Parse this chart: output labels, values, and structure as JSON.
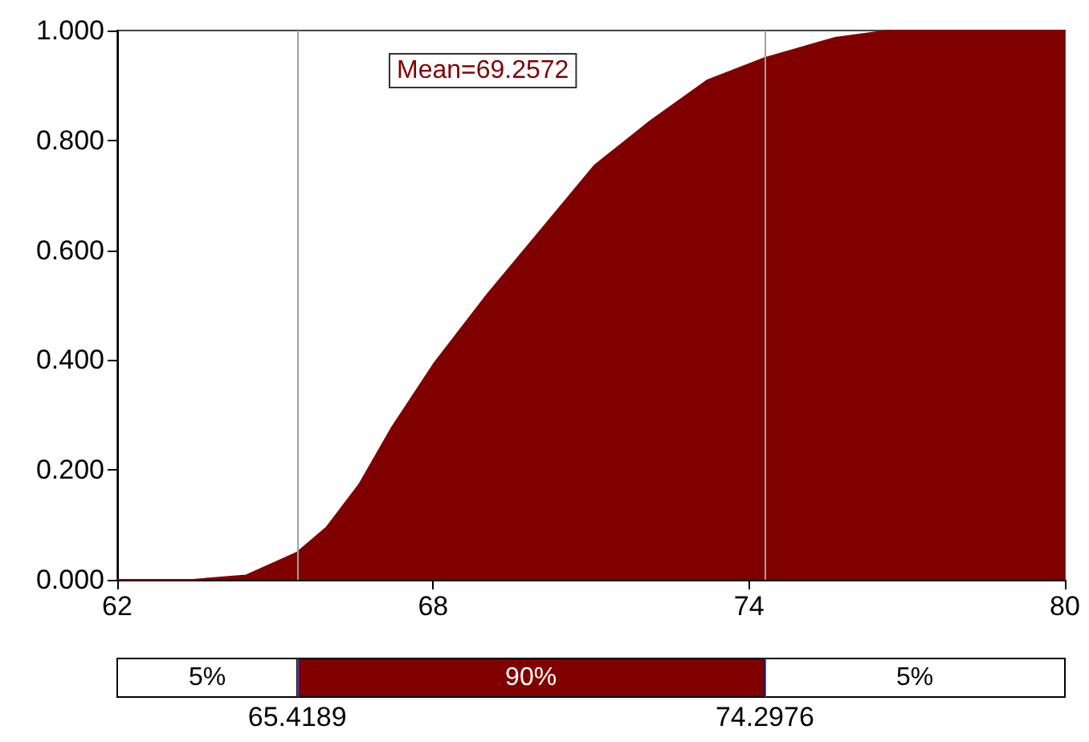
{
  "chart_data": {
    "type": "area",
    "x": [
      62,
      63.43,
      64.45,
      65.4189,
      65.97,
      66.59,
      67.2,
      68.01,
      69.03,
      70.04,
      71.06,
      72.08,
      73.2,
      74.2976,
      75.64,
      76.65,
      80
    ],
    "values": [
      0,
      0,
      0.008,
      0.05,
      0.095,
      0.173,
      0.275,
      0.393,
      0.52,
      0.636,
      0.754,
      0.832,
      0.909,
      0.95,
      0.987,
      1,
      1
    ],
    "color": "#800000",
    "xlim": [
      62,
      80
    ],
    "xticks": [
      62,
      68,
      74,
      80
    ],
    "ylim": [
      0,
      1
    ],
    "yticks": [
      {
        "value": 0,
        "label": "0.000"
      },
      {
        "value": 0.2,
        "label": "0.200"
      },
      {
        "value": 0.4,
        "label": "0.400"
      },
      {
        "value": 0.6,
        "label": "0.600"
      },
      {
        "value": 0.8,
        "label": "0.800"
      },
      {
        "value": 1,
        "label": "1.000"
      }
    ],
    "grid": false,
    "marker": "none",
    "ref_lines": [
      {
        "axis": "x",
        "value": 65.4189
      },
      {
        "axis": "x",
        "value": 74.2976
      }
    ],
    "annotations": [
      "Mean=69.2572",
      "5%",
      "90%",
      "5%",
      "65.4189",
      "74.2976"
    ]
  }
}
